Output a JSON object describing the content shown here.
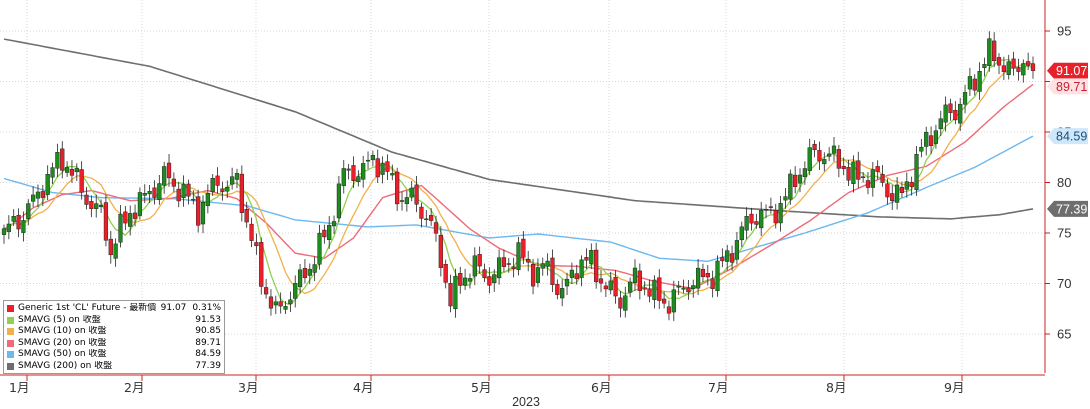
{
  "chart_data": {
    "type": "candlestick",
    "title": "",
    "xlabel": "2023",
    "ylabel": "",
    "ylim": [
      61,
      96
    ],
    "y_ticks": [
      65,
      70,
      75,
      80,
      85,
      90,
      95
    ],
    "x_ticks": [
      "1月",
      "2月",
      "3月",
      "4月",
      "5月",
      "6月",
      "7月",
      "8月",
      "9月"
    ],
    "year_label": "2023",
    "grid": true,
    "legend_position": "bottom-left",
    "colors": {
      "up": "#1f8a1f",
      "down": "#e8202a",
      "sma5": "#8ed24e",
      "sma10": "#f2b04a",
      "sma20": "#ee6b78",
      "sma50": "#6cb8f0",
      "sma200": "#6e6e6e",
      "price_tag": "#e8202a"
    },
    "anchors": {
      "close": [
        [
          0,
          74.5
        ],
        [
          4,
          77
        ],
        [
          8,
          80
        ],
        [
          12,
          82
        ],
        [
          16,
          79.5
        ],
        [
          20,
          77
        ],
        [
          22,
          73
        ],
        [
          26,
          77
        ],
        [
          30,
          79.5
        ],
        [
          33,
          80.5
        ],
        [
          36,
          79
        ],
        [
          40,
          77.5
        ],
        [
          44,
          80.5
        ],
        [
          46,
          79
        ],
        [
          48,
          80
        ],
        [
          50,
          76
        ],
        [
          53,
          71
        ],
        [
          56,
          67
        ],
        [
          58,
          68
        ],
        [
          61,
          70
        ],
        [
          64,
          73
        ],
        [
          67,
          76
        ],
        [
          70,
          80.5
        ],
        [
          74,
          81
        ],
        [
          76,
          83
        ],
        [
          79,
          81
        ],
        [
          82,
          78
        ],
        [
          85,
          78
        ],
        [
          88,
          76
        ],
        [
          90,
          73
        ],
        [
          92,
          68
        ],
        [
          94,
          70
        ],
        [
          97,
          71.5
        ],
        [
          100,
          71
        ],
        [
          103,
          72
        ],
        [
          106,
          72.5
        ],
        [
          109,
          71
        ],
        [
          112,
          72
        ],
        [
          115,
          69
        ],
        [
          118,
          71.5
        ],
        [
          121,
          72
        ],
        [
          124,
          70
        ],
        [
          127,
          68.5
        ],
        [
          130,
          70
        ],
        [
          134,
          69
        ],
        [
          137,
          68.5
        ],
        [
          140,
          69.5
        ],
        [
          143,
          70
        ],
        [
          146,
          71
        ],
        [
          149,
          73
        ],
        [
          152,
          75
        ],
        [
          155,
          76.5
        ],
        [
          158,
          77
        ],
        [
          161,
          79
        ],
        [
          164,
          81
        ],
        [
          167,
          82.5
        ],
        [
          170,
          83
        ],
        [
          173,
          82
        ],
        [
          176,
          80
        ],
        [
          179,
          80.5
        ],
        [
          182,
          79.5
        ],
        [
          185,
          79
        ],
        [
          188,
          82
        ],
        [
          191,
          84.5
        ],
        [
          194,
          87
        ],
        [
          197,
          88
        ],
        [
          200,
          90
        ],
        [
          203,
          92.5
        ],
        [
          206,
          92
        ],
        [
          208,
          91
        ],
        [
          210,
          92.5
        ],
        [
          212,
          91.07
        ]
      ],
      "sma200": [
        [
          0,
          94.2
        ],
        [
          30,
          91.5
        ],
        [
          60,
          87
        ],
        [
          80,
          83
        ],
        [
          100,
          80.3
        ],
        [
          130,
          78.2
        ],
        [
          160,
          77.2
        ],
        [
          180,
          76.6
        ],
        [
          195,
          76.4
        ],
        [
          205,
          76.8
        ],
        [
          212,
          77.39
        ]
      ],
      "sma50": [
        [
          0,
          80.4
        ],
        [
          10,
          79
        ],
        [
          20,
          78.5
        ],
        [
          35,
          78.4
        ],
        [
          50,
          77.7
        ],
        [
          60,
          76.3
        ],
        [
          75,
          75.6
        ],
        [
          85,
          75.8
        ],
        [
          100,
          74.5
        ],
        [
          110,
          74.9
        ],
        [
          125,
          74.1
        ],
        [
          135,
          72.5
        ],
        [
          145,
          72.2
        ],
        [
          155,
          73.6
        ],
        [
          165,
          75
        ],
        [
          178,
          77
        ],
        [
          190,
          79.5
        ],
        [
          200,
          81.5
        ],
        [
          212,
          84.59
        ]
      ],
      "sma20": [
        [
          0,
          75.2
        ],
        [
          6,
          77.5
        ],
        [
          12,
          78.8
        ],
        [
          18,
          79.2
        ],
        [
          26,
          78.2
        ],
        [
          34,
          78.4
        ],
        [
          42,
          79.2
        ],
        [
          48,
          78.4
        ],
        [
          54,
          76
        ],
        [
          60,
          73
        ],
        [
          66,
          72.5
        ],
        [
          72,
          74.5
        ],
        [
          78,
          78.5
        ],
        [
          86,
          79.7
        ],
        [
          90,
          78
        ],
        [
          96,
          75.4
        ],
        [
          102,
          73.5
        ],
        [
          110,
          71.8
        ],
        [
          118,
          71.7
        ],
        [
          126,
          71.3
        ],
        [
          134,
          70.2
        ],
        [
          142,
          69.5
        ],
        [
          150,
          71.5
        ],
        [
          158,
          73.8
        ],
        [
          166,
          76.2
        ],
        [
          174,
          79
        ],
        [
          182,
          80.7
        ],
        [
          190,
          81.6
        ],
        [
          198,
          84
        ],
        [
          206,
          87.5
        ],
        [
          212,
          89.71
        ]
      ]
    },
    "last_price_labels": [
      "91.07",
      "89.71",
      "84.59",
      "77.39"
    ]
  },
  "legend": {
    "rows": [
      {
        "name": "Generic 1st 'CL' Future - 最新價",
        "value": "91.07",
        "extra": "0.31%",
        "color": "#e8202a"
      },
      {
        "name": "SMAVG (5)  on 收盤",
        "value": "91.53",
        "color": "#8ed24e"
      },
      {
        "name": "SMAVG (10)  on 收盤",
        "value": "90.85",
        "color": "#f2b04a"
      },
      {
        "name": "SMAVG (20)  on 收盤",
        "value": "89.71",
        "color": "#ee6b78"
      },
      {
        "name": "SMAVG (50)  on 收盤",
        "value": "84.59",
        "color": "#6cb8f0"
      },
      {
        "name": "SMAVG (200)  on 收盤",
        "value": "77.39",
        "color": "#6e6e6e"
      }
    ]
  }
}
